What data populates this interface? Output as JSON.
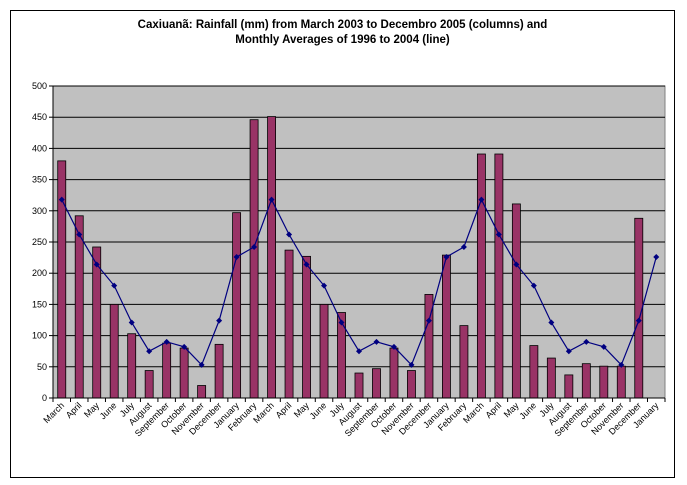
{
  "chart_data": {
    "type": "bar",
    "title_line1": "Caxiuanã: Rainfall (mm) from March 2003 to Decembro 2005 (columns) and",
    "title_line2": "Monthly Averages of 1996 to 2004 (line)",
    "ylim": [
      0,
      500
    ],
    "yticks": [
      0,
      50,
      100,
      150,
      200,
      250,
      300,
      350,
      400,
      450,
      500
    ],
    "grid": true,
    "categories": [
      "March",
      "April",
      "May",
      "June",
      "July",
      "August",
      "September",
      "October",
      "November",
      "December",
      "January",
      "February",
      "March",
      "April",
      "May",
      "June",
      "July",
      "August",
      "September",
      "October",
      "November",
      "December",
      "January",
      "February",
      "March",
      "April",
      "May",
      "June",
      "July",
      "August",
      "September",
      "October",
      "November",
      "December",
      "January"
    ],
    "series": [
      {
        "kind": "bar",
        "color": "#993366",
        "values": [
          380,
          292,
          242,
          150,
          103,
          44,
          88,
          80,
          20,
          86,
          297,
          446,
          451,
          237,
          227,
          150,
          137,
          40,
          47,
          80,
          44,
          166,
          229,
          116,
          391,
          391,
          311,
          84,
          64,
          37,
          55,
          51,
          51,
          288,
          null
        ]
      },
      {
        "kind": "line",
        "color": "#000080",
        "values": [
          318,
          262,
          214,
          180,
          121,
          75,
          90,
          82,
          53,
          124,
          226,
          242,
          318,
          262,
          214,
          180,
          121,
          75,
          90,
          82,
          53,
          124,
          226,
          242,
          318,
          262,
          214,
          180,
          121,
          75,
          90,
          82,
          53,
          124,
          226
        ]
      }
    ],
    "colors": {
      "plot_bg": "#c0c0c0",
      "bar": "#993366",
      "line": "#000080",
      "grid": "#000000"
    }
  }
}
